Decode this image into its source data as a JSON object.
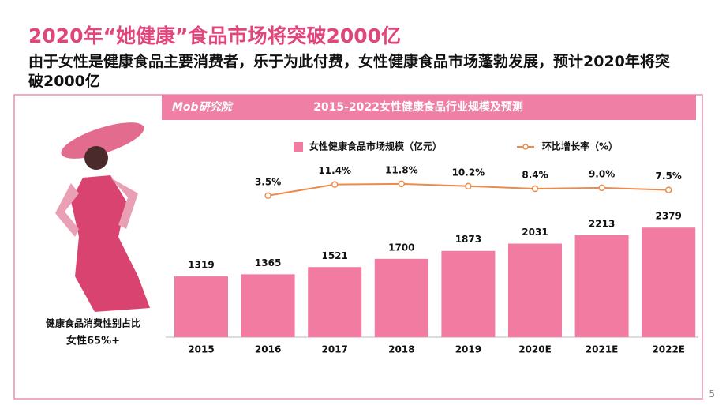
{
  "title": "2020年“她健康”食品市场将突破2000亿",
  "subtitle": "由于女性是健康食品主要消费者，乐于为此付费，女性健康食品市场蓬勃发展，预计2020年将突破2000亿",
  "page_number": "5",
  "side_panel": {
    "caption": "健康食品消费性别占比",
    "highlight": "女性65%+"
  },
  "chart_data": {
    "type": "bar",
    "title": "2015-2022女性健康食品行业规模及预测",
    "logo": "Mob研究院",
    "categories": [
      "2015",
      "2016",
      "2017",
      "2018",
      "2019",
      "2020E",
      "2021E",
      "2022E"
    ],
    "series": [
      {
        "name": "女性健康食品市场规模（亿元）",
        "type": "bar",
        "color": "#f27ba2",
        "values": [
          1319,
          1365,
          1521,
          1700,
          1873,
          2031,
          2213,
          2379
        ]
      },
      {
        "name": "环比增长率（%）",
        "type": "line",
        "axis": "y2",
        "color": "#ec8b4a",
        "values": [
          null,
          3.5,
          11.4,
          11.8,
          10.2,
          8.4,
          9.0,
          7.5
        ],
        "value_labels": [
          null,
          "3.5%",
          "11.4%",
          "11.8%",
          "10.2%",
          "8.4%",
          "9.0%",
          "7.5%"
        ]
      }
    ],
    "ylim": [
      0,
      3000
    ],
    "y2lim": [
      0,
      14
    ]
  }
}
